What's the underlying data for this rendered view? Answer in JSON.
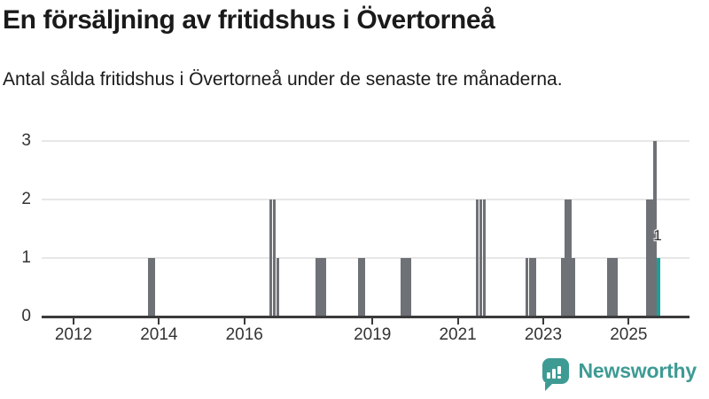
{
  "header": {
    "title": "En försäljning av fritidshus i Övertorneå",
    "subtitle": "Antal sålda fritidshus i Övertorneå under de senaste tre månaderna."
  },
  "chart_data": {
    "type": "bar",
    "title": "En försäljning av fritidshus i Övertorneå",
    "subtitle": "Antal sålda fritidshus i Övertorneå under de senaste tre månaderna.",
    "xlabel": "",
    "ylabel": "",
    "ylim": [
      0,
      3
    ],
    "y_ticks": [
      0,
      1,
      2,
      3
    ],
    "x_tick_years": [
      2012,
      2014,
      2016,
      2019,
      2021,
      2023,
      2025
    ],
    "grid": "horizontal",
    "bar_color": "#6e7176",
    "highlight_color": "#18a29b",
    "axis_color": "#3b3b3b",
    "points": [
      {
        "month": "2013-10",
        "value": 1
      },
      {
        "month": "2013-11",
        "value": 1
      },
      {
        "month": "2016-08",
        "value": 2
      },
      {
        "month": "2016-09",
        "value": 2
      },
      {
        "month": "2016-10",
        "value": 1
      },
      {
        "month": "2017-09",
        "value": 1
      },
      {
        "month": "2017-10",
        "value": 1
      },
      {
        "month": "2017-11",
        "value": 1
      },
      {
        "month": "2018-09",
        "value": 1
      },
      {
        "month": "2018-10",
        "value": 1
      },
      {
        "month": "2019-09",
        "value": 1
      },
      {
        "month": "2019-10",
        "value": 1
      },
      {
        "month": "2019-11",
        "value": 1
      },
      {
        "month": "2021-06",
        "value": 2
      },
      {
        "month": "2021-07",
        "value": 2
      },
      {
        "month": "2021-08",
        "value": 2
      },
      {
        "month": "2022-08",
        "value": 1
      },
      {
        "month": "2022-09",
        "value": 1
      },
      {
        "month": "2022-10",
        "value": 1
      },
      {
        "month": "2023-06",
        "value": 1
      },
      {
        "month": "2023-07",
        "value": 2
      },
      {
        "month": "2023-08",
        "value": 2
      },
      {
        "month": "2023-09",
        "value": 1
      },
      {
        "month": "2024-07",
        "value": 1
      },
      {
        "month": "2024-08",
        "value": 1
      },
      {
        "month": "2024-09",
        "value": 1
      },
      {
        "month": "2025-06",
        "value": 2
      },
      {
        "month": "2025-07",
        "value": 2
      },
      {
        "month": "2025-08",
        "value": 3
      },
      {
        "month": "2025-09",
        "value": 1,
        "highlight": true
      }
    ],
    "annotation": {
      "text": "1",
      "month": "2025-09",
      "value": 1
    }
  },
  "footer": {
    "brand": "Newsworthy",
    "brand_color": "#3e9b94",
    "logo_icon": "newsworthy-chart-bubble-icon"
  }
}
